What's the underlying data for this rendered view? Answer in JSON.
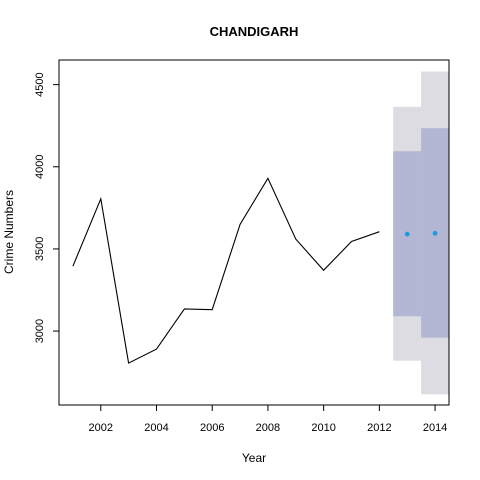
{
  "chart_data": {
    "type": "line",
    "title": "CHANDIGARH",
    "xlabel": "Year",
    "ylabel": "Crime Numbers",
    "xlim": [
      2000.5,
      2014.5
    ],
    "ylim": [
      2550,
      4650
    ],
    "x_ticks": [
      2002,
      2004,
      2006,
      2008,
      2010,
      2012,
      2014
    ],
    "y_ticks": [
      3000,
      3500,
      4000,
      4500
    ],
    "grid": false,
    "series": [
      {
        "values": [
          {
            "x": 2001,
            "y": 3395
          },
          {
            "x": 2002,
            "y": 3805
          },
          {
            "x": 2003,
            "y": 2805
          },
          {
            "x": 2004,
            "y": 2890
          },
          {
            "x": 2005,
            "y": 3135
          },
          {
            "x": 2006,
            "y": 3130
          },
          {
            "x": 2007,
            "y": 3650
          },
          {
            "x": 2008,
            "y": 3930
          },
          {
            "x": 2009,
            "y": 3560
          },
          {
            "x": 2010,
            "y": 3370
          },
          {
            "x": 2011,
            "y": 3545
          },
          {
            "x": 2012,
            "y": 3605
          }
        ],
        "color": "#000000"
      }
    ],
    "forecast": {
      "points": [
        {
          "x": 2013,
          "y": 3590
        },
        {
          "x": 2014,
          "y": 3595
        }
      ],
      "intervals": [
        {
          "x": 2013,
          "lo80": 3090,
          "hi80": 4095,
          "lo95": 2820,
          "hi95": 4365
        },
        {
          "x": 2014,
          "lo80": 2960,
          "hi80": 4235,
          "lo95": 2615,
          "hi95": 4580
        }
      ],
      "point_color": "#1b9be0",
      "band80_color": "#b3b7d4",
      "band95_color": "#dcdce2"
    }
  }
}
